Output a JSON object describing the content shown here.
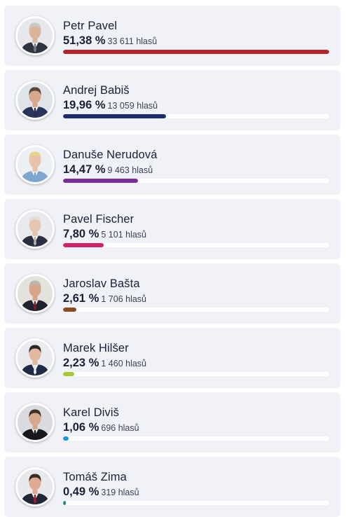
{
  "candidates": [
    {
      "name": "Petr Pavel",
      "percent": "51,38 %",
      "votes": "33 611 hlasů",
      "share": 1.0,
      "color": "#b5262a",
      "skin": "#d9b39a",
      "hair": "#c9c9c9",
      "suit": "#2d3440",
      "tie": "#6b7a8c",
      "bg": "#e6e8ec",
      "avatar_icon": "candidate-photo-icon"
    },
    {
      "name": "Andrej Babiš",
      "percent": "19,96 %",
      "votes": "13 059 hlasů",
      "share": 0.388,
      "color": "#1e2a6e",
      "skin": "#d8a88c",
      "hair": "#5a4536",
      "suit": "#27355a",
      "tie": "#2c2f4a",
      "bg": "#dfe3ea",
      "avatar_icon": "candidate-photo-icon"
    },
    {
      "name": "Danuše Nerudová",
      "percent": "14,47 %",
      "votes": "9 463 hlasů",
      "share": 0.282,
      "color": "#7a2e9c",
      "skin": "#e8c2aa",
      "hair": "#e9d38a",
      "suit": "#7fa6cf",
      "tie": "#7fa6cf",
      "bg": "#eceff3",
      "avatar_icon": "candidate-photo-icon"
    },
    {
      "name": "Pavel Fischer",
      "percent": "7,80 %",
      "votes": "5 101 hlasů",
      "share": 0.152,
      "color": "#d61f6b",
      "skin": "#e6c4b2",
      "hair": "#e2ddd8",
      "suit": "#2a3044",
      "tie": "#b8b4a0",
      "bg": "#e9eaee",
      "avatar_icon": "candidate-photo-icon"
    },
    {
      "name": "Jaroslav Bašta",
      "percent": "2,61 %",
      "votes": "1 706 hlasů",
      "share": 0.051,
      "color": "#8a4b1f",
      "skin": "#d9a588",
      "hair": "#b8b8b0",
      "suit": "#1f2230",
      "tie": "#7a1e22",
      "bg": "#e4e2dc",
      "avatar_icon": "candidate-photo-icon"
    },
    {
      "name": "Marek Hilšer",
      "percent": "2,23 %",
      "votes": "1 460 hlasů",
      "share": 0.043,
      "color": "#a8c83a",
      "skin": "#e1b79f",
      "hair": "#2d2622",
      "suit": "#1f2a44",
      "tie": "#e8e8ee",
      "bg": "#e9ebef",
      "avatar_icon": "candidate-photo-icon"
    },
    {
      "name": "Karel Diviš",
      "percent": "1,06 %",
      "votes": "696 hlasů",
      "share": 0.021,
      "color": "#1a9ad6",
      "skin": "#d6a98e",
      "hair": "#3a3029",
      "suit": "#16181e",
      "tie": "#16181e",
      "bg": "#d9dbdf",
      "avatar_icon": "candidate-photo-icon"
    },
    {
      "name": "Tomáš Zima",
      "percent": "0,49 %",
      "votes": "319 hlasů",
      "share": 0.0095,
      "color": "#1d8a7a",
      "skin": "#dcab92",
      "hair": "#3b2d24",
      "suit": "#202636",
      "tie": "#a3202a",
      "bg": "#e8e9ed",
      "avatar_icon": "candidate-photo-icon"
    }
  ]
}
